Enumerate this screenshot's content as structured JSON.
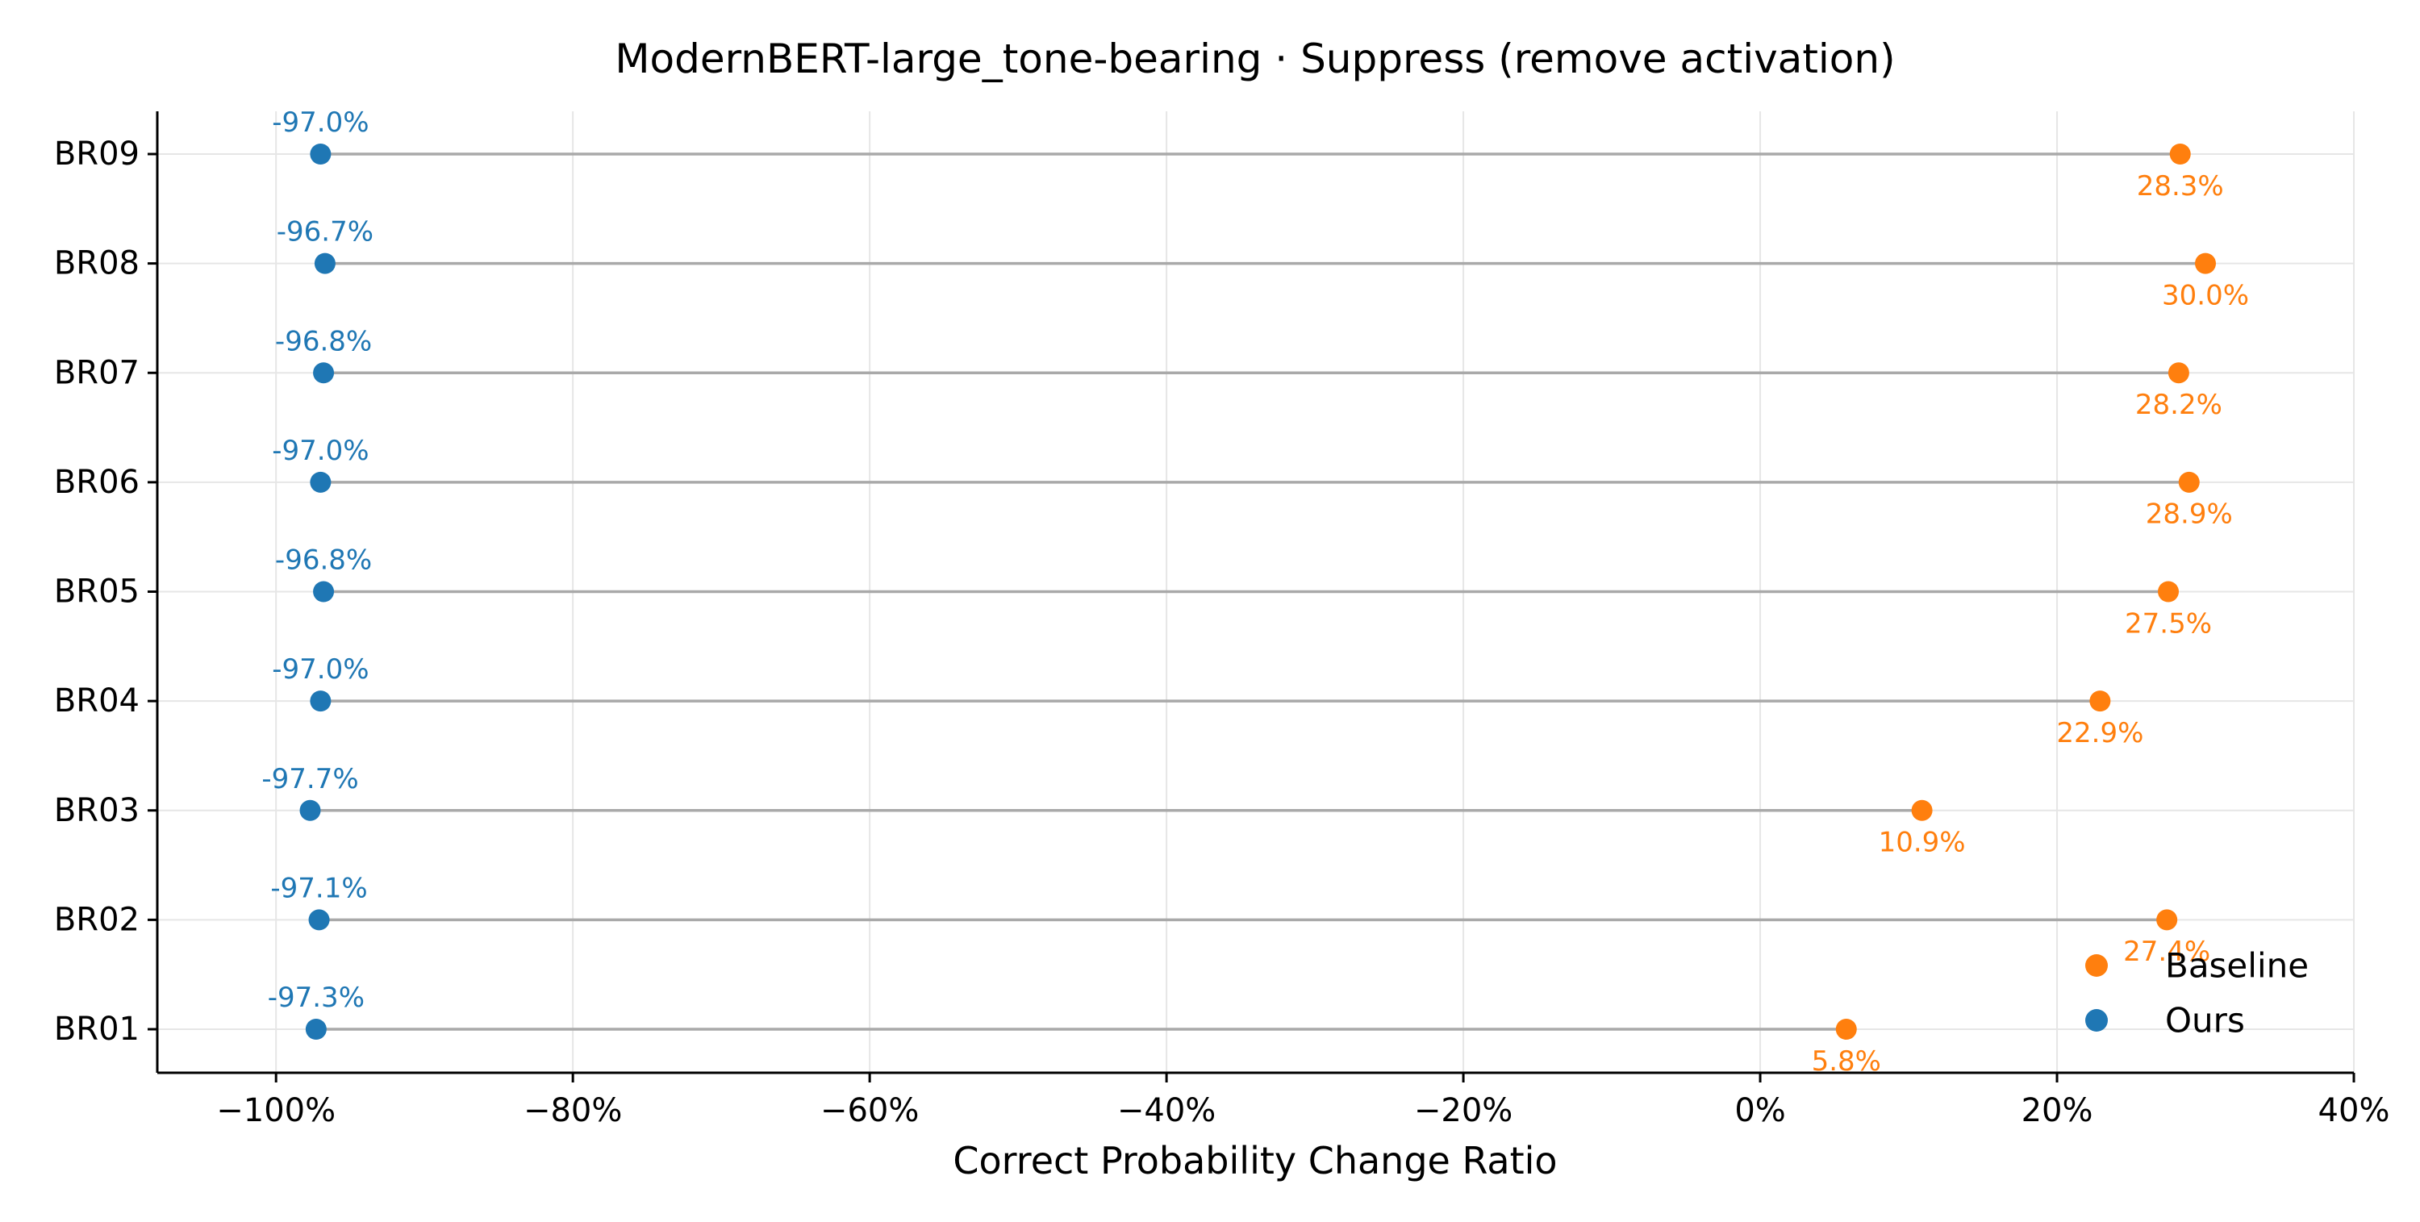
{
  "chart_data": {
    "type": "dumbbell",
    "title": "ModernBERT-large_tone-bearing · Suppress (remove activation)",
    "xlabel": "Correct Probability Change Ratio",
    "ylabel": "",
    "xlim": [
      -108,
      40
    ],
    "xticks": [
      -100,
      -80,
      -60,
      -40,
      -20,
      0,
      20,
      40
    ],
    "xtick_labels": [
      "−100%",
      "−80%",
      "−60%",
      "−40%",
      "−20%",
      "0%",
      "20%",
      "40%"
    ],
    "categories": [
      "BR01",
      "BR02",
      "BR03",
      "BR04",
      "BR05",
      "BR06",
      "BR07",
      "BR08",
      "BR09"
    ],
    "series": [
      {
        "name": "Baseline",
        "color": "#ff7f0e",
        "values": [
          5.8,
          27.4,
          10.9,
          22.9,
          27.5,
          28.9,
          28.2,
          30.0,
          28.3
        ],
        "labels": [
          "5.8%",
          "27.4%",
          "10.9%",
          "22.9%",
          "27.5%",
          "28.9%",
          "28.2%",
          "30.0%",
          "28.3%"
        ]
      },
      {
        "name": "Ours",
        "color": "#1f77b4",
        "values": [
          -97.3,
          -97.1,
          -97.7,
          -97.0,
          -96.8,
          -97.0,
          -96.8,
          -96.7,
          -97.0
        ],
        "labels": [
          "-97.3%",
          "-97.1%",
          "-97.7%",
          "-97.0%",
          "-96.8%",
          "-97.0%",
          "-96.8%",
          "-96.7%",
          "-97.0%"
        ]
      }
    ],
    "grid": true,
    "legend_position": "lower-right"
  }
}
